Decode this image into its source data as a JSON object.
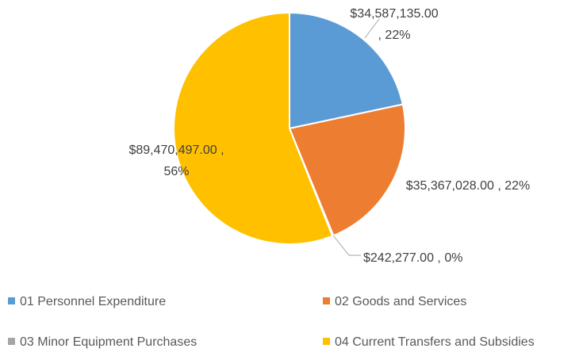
{
  "chart_data": {
    "type": "pie",
    "categories": [
      "01 Personnel Expenditure",
      "02 Goods and Services",
      "03 Minor Equipment Purchases",
      "04 Current Transfers and Subsidies"
    ],
    "values": [
      34587135.0,
      35367028.0,
      242277.0,
      89470497.0
    ],
    "value_labels": [
      "$34,587,135.00 , 22%",
      "$35,367,028.00 , 22%",
      "$242,277.00 , 0%",
      "$89,470,497.00 , 56%"
    ],
    "colors": [
      "#5b9bd5",
      "#ed7d31",
      "#a5a5a5",
      "#ffc000"
    ],
    "legend": "bottom"
  }
}
